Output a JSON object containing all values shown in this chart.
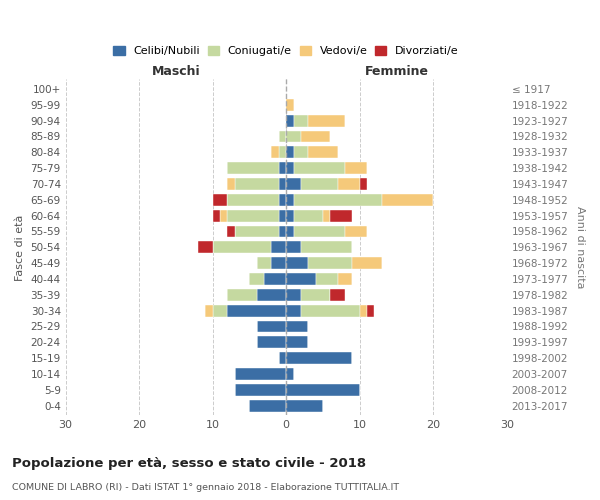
{
  "age_groups": [
    "0-4",
    "5-9",
    "10-14",
    "15-19",
    "20-24",
    "25-29",
    "30-34",
    "35-39",
    "40-44",
    "45-49",
    "50-54",
    "55-59",
    "60-64",
    "65-69",
    "70-74",
    "75-79",
    "80-84",
    "85-89",
    "90-94",
    "95-99",
    "100+"
  ],
  "birth_years": [
    "2013-2017",
    "2008-2012",
    "2003-2007",
    "1998-2002",
    "1993-1997",
    "1988-1992",
    "1983-1987",
    "1978-1982",
    "1973-1977",
    "1968-1972",
    "1963-1967",
    "1958-1962",
    "1953-1957",
    "1948-1952",
    "1943-1947",
    "1938-1942",
    "1933-1937",
    "1928-1932",
    "1923-1927",
    "1918-1922",
    "≤ 1917"
  ],
  "colors": {
    "celibi": "#3B6EA5",
    "coniugati": "#C5D9A0",
    "vedovi": "#F5C97A",
    "divorziati": "#C0282C"
  },
  "maschi": {
    "celibi": [
      5,
      7,
      7,
      1,
      4,
      4,
      8,
      4,
      3,
      2,
      2,
      1,
      1,
      1,
      1,
      1,
      0,
      0,
      0,
      0,
      0
    ],
    "coniugati": [
      0,
      0,
      0,
      0,
      0,
      0,
      2,
      4,
      2,
      2,
      8,
      6,
      7,
      7,
      6,
      7,
      1,
      1,
      0,
      0,
      0
    ],
    "vedovi": [
      0,
      0,
      0,
      0,
      0,
      0,
      1,
      0,
      0,
      0,
      0,
      0,
      1,
      0,
      1,
      0,
      1,
      0,
      0,
      0,
      0
    ],
    "divorziati": [
      0,
      0,
      0,
      0,
      0,
      0,
      0,
      0,
      0,
      0,
      2,
      1,
      1,
      2,
      0,
      0,
      0,
      0,
      0,
      0,
      0
    ]
  },
  "femmine": {
    "celibi": [
      5,
      10,
      1,
      9,
      3,
      3,
      2,
      2,
      4,
      3,
      2,
      1,
      1,
      1,
      2,
      1,
      1,
      0,
      1,
      0,
      0
    ],
    "coniugati": [
      0,
      0,
      0,
      0,
      0,
      0,
      8,
      4,
      3,
      6,
      7,
      7,
      4,
      12,
      5,
      7,
      2,
      2,
      2,
      0,
      0
    ],
    "vedovi": [
      0,
      0,
      0,
      0,
      0,
      0,
      1,
      0,
      2,
      4,
      0,
      3,
      1,
      7,
      3,
      3,
      4,
      4,
      5,
      1,
      0
    ],
    "divorziati": [
      0,
      0,
      0,
      0,
      0,
      0,
      1,
      2,
      0,
      0,
      0,
      0,
      3,
      0,
      1,
      0,
      0,
      0,
      0,
      0,
      0
    ]
  },
  "xlim": 30,
  "title": "Popolazione per età, sesso e stato civile - 2018",
  "subtitle": "COMUNE DI LABRO (RI) - Dati ISTAT 1° gennaio 2018 - Elaborazione TUTTITALIA.IT",
  "ylabel_left": "Fasce di età",
  "ylabel_right": "Anni di nascita",
  "xlabel_left": "Maschi",
  "xlabel_right": "Femmine",
  "legend_labels": [
    "Celibi/Nubili",
    "Coniugati/e",
    "Vedovi/e",
    "Divorziati/e"
  ],
  "bg_color": "#ffffff",
  "grid_color": "#cccccc"
}
